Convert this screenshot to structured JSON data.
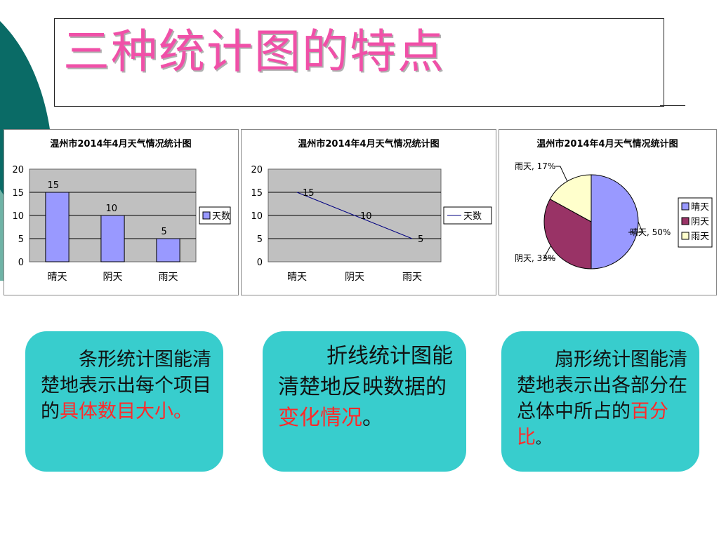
{
  "slide": {
    "title": "三种统计图的特点",
    "colors": {
      "title": "#f050a8",
      "card_bg": "#38cdcd",
      "highlight": "#ff2a2a",
      "deco": "#0a6b66"
    }
  },
  "cards": [
    {
      "text_before": "条形统计图能清楚地表示出每个项目的",
      "highlight": "具体数目大小。",
      "text_after": ""
    },
    {
      "text_before": "折线统计图能清楚地反映数据的",
      "highlight": "变化情况",
      "text_after": "。"
    },
    {
      "text_before": "扇形统计图能清楚地表示出各部分在总体中所占的",
      "highlight": "百分比",
      "text_after": "。"
    }
  ],
  "chart_data": [
    {
      "type": "bar",
      "title": "温州市2014年4月天气情况统计图",
      "categories": [
        "晴天",
        "阴天",
        "雨天"
      ],
      "series": [
        {
          "name": "天数",
          "values": [
            15,
            10,
            5
          ],
          "color": "#9999ff"
        }
      ],
      "ylim": [
        0,
        20
      ],
      "yticks": [
        0,
        5,
        10,
        15,
        20
      ],
      "data_labels": [
        "15",
        "10",
        "5"
      ],
      "grid": true,
      "plot_bg": "#c0c0c0",
      "legend": "right"
    },
    {
      "type": "line",
      "title": "温州市2014年4月天气情况统计图",
      "categories": [
        "晴天",
        "阴天",
        "雨天"
      ],
      "series": [
        {
          "name": "天数",
          "values": [
            15,
            10,
            5
          ],
          "color": "#000080"
        }
      ],
      "ylim": [
        0,
        20
      ],
      "yticks": [
        0,
        5,
        10,
        15,
        20
      ],
      "data_labels": [
        "15",
        "10",
        "5"
      ],
      "grid": true,
      "plot_bg": "#c0c0c0",
      "legend": "right"
    },
    {
      "type": "pie",
      "title": "温州市2014年4月天气情况统计图",
      "categories": [
        "晴天",
        "阴天",
        "雨天"
      ],
      "values": [
        50,
        33,
        17
      ],
      "colors": [
        "#9999ff",
        "#993366",
        "#ffffcc"
      ],
      "slice_labels": [
        "晴天, 50%",
        "阴天, 33%",
        "雨天, 17%"
      ],
      "legend": "right"
    }
  ]
}
